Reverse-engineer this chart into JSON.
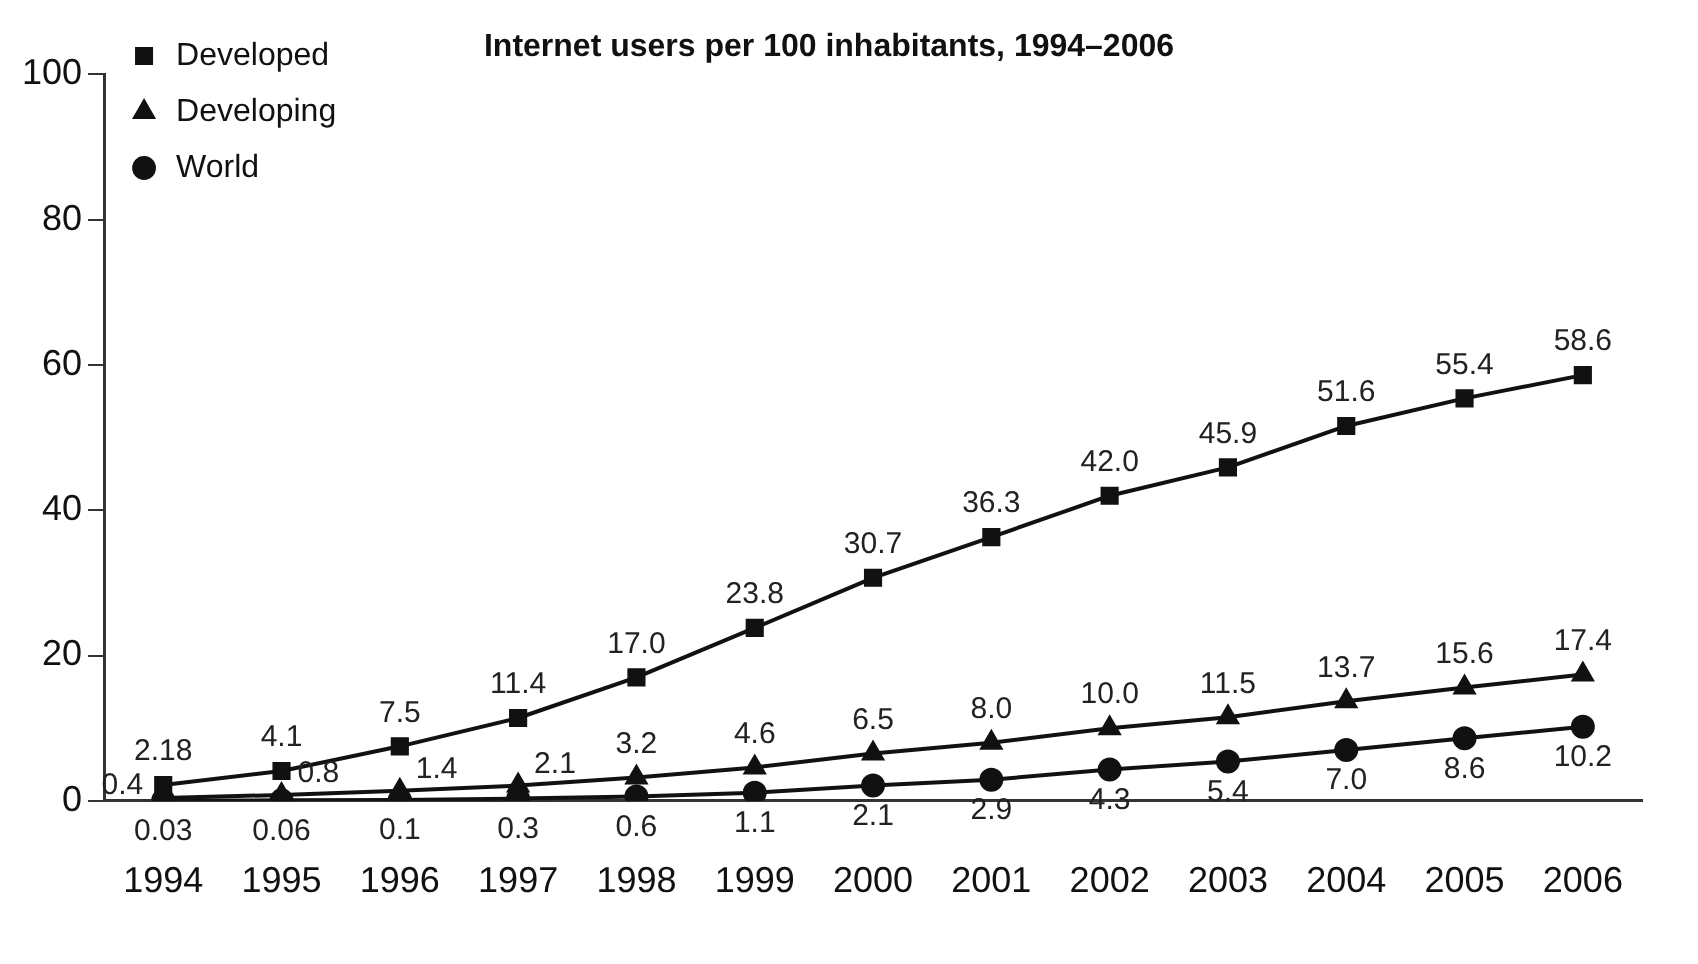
{
  "chart_data": {
    "type": "line",
    "title": "Internet users per 100 inhabitants, 1994–2006",
    "categories": [
      "1994",
      "1995",
      "1996",
      "1997",
      "1998",
      "1999",
      "2000",
      "2001",
      "2002",
      "2003",
      "2004",
      "2005",
      "2006"
    ],
    "series": [
      {
        "name": "Developed",
        "color": "#111111",
        "marker": "square",
        "values": [
          2.18,
          4.1,
          7.5,
          11.4,
          17.0,
          23.8,
          30.7,
          36.3,
          42.0,
          45.9,
          51.6,
          55.4,
          58.6
        ],
        "value_labels": [
          "2.18",
          "4.1",
          "7.5",
          "11.4",
          "17.0",
          "23.8",
          "30.7",
          "36.3",
          "42.0",
          "45.9",
          "51.6",
          "55.4",
          "58.6"
        ]
      },
      {
        "name": "Developing",
        "color": "#111111",
        "marker": "triangle",
        "values": [
          0.4,
          0.8,
          1.4,
          2.1,
          3.2,
          4.6,
          6.5,
          8.0,
          10.0,
          11.5,
          13.7,
          15.6,
          17.4
        ],
        "value_labels": [
          "0.4",
          "0.8",
          "1.4",
          "2.1",
          "3.2",
          "4.6",
          "6.5",
          "8.0",
          "10.0",
          "11.5",
          "13.7",
          "15.6",
          "17.4"
        ]
      },
      {
        "name": "World",
        "color": "#111111",
        "marker": "circle",
        "values": [
          0.03,
          0.06,
          0.1,
          0.3,
          0.6,
          1.1,
          2.1,
          2.9,
          4.3,
          5.4,
          7.0,
          8.6,
          10.2
        ],
        "value_labels": [
          "0.03",
          "0.06",
          "0.1",
          "0.3",
          "0.6",
          "1.1",
          "2.1",
          "2.9",
          "4.3",
          "5.4",
          "7.0",
          "8.6",
          "10.2"
        ]
      }
    ],
    "ylim": [
      0,
      100
    ],
    "yticks": [
      0,
      20,
      40,
      60,
      80,
      100
    ],
    "grid": false,
    "legend": "top left",
    "line_style": "solid"
  }
}
